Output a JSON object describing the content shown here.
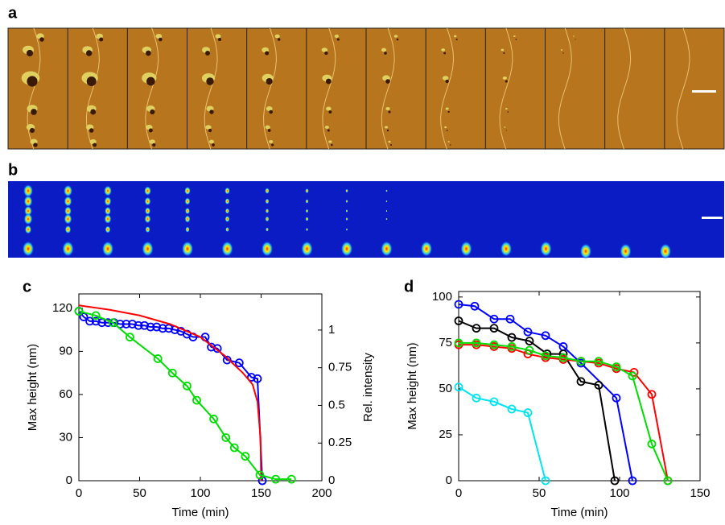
{
  "panel_labels": [
    "a",
    "b",
    "c",
    "d"
  ],
  "chart_data": [
    {
      "type": "line",
      "xlabel": "Time (min)",
      "ylabel": "Max height (nm)",
      "y2label": "Rel. intensity",
      "xlim": [
        0,
        200
      ],
      "xticks": [
        0,
        50,
        100,
        150,
        200
      ],
      "ylim": [
        0,
        130
      ],
      "yticks": [
        0,
        30,
        60,
        90,
        120
      ],
      "y2lim": [
        0,
        1.24
      ],
      "y2ticks": [
        0,
        0.25,
        0.5,
        0.75,
        1
      ],
      "series": [
        {
          "color": "#0000ff",
          "markers": true,
          "x": [
            0,
            4,
            9,
            14,
            19,
            24,
            29,
            34,
            39,
            44,
            49,
            54,
            59,
            64,
            69,
            74,
            79,
            84,
            89,
            94,
            104,
            109,
            114,
            122,
            132,
            142,
            147,
            151
          ],
          "values": [
            118,
            114,
            111,
            111,
            110,
            110,
            110,
            109,
            109,
            109,
            108,
            108,
            107,
            107,
            106,
            106,
            105,
            104,
            102,
            100,
            100,
            93,
            92,
            84,
            82,
            72,
            71,
            0
          ]
        },
        {
          "color": "#ff0000",
          "markers": false,
          "x": [
            0,
            25,
            50,
            75,
            100,
            120,
            135,
            143,
            147,
            149.5,
            150
          ],
          "values": [
            122,
            119,
            115,
            109,
            100,
            87,
            75,
            67,
            55,
            30,
            0
          ]
        },
        {
          "color": "#00dd00",
          "markers": true,
          "axis": "y2",
          "x": [
            0,
            14,
            28,
            42,
            65,
            77,
            89,
            97,
            111,
            121,
            128,
            137,
            149,
            162,
            175
          ],
          "values": [
            1.125,
            1.096,
            1.049,
            0.953,
            0.81,
            0.715,
            0.629,
            0.534,
            0.41,
            0.286,
            0.219,
            0.162,
            0.038,
            0.01,
            0.01
          ]
        }
      ]
    },
    {
      "type": "line",
      "xlabel": "Time (min)",
      "ylabel": "Max height (nm)",
      "xlim": [
        0,
        150
      ],
      "xticks": [
        0,
        50,
        100,
        150
      ],
      "ylim": [
        0,
        103
      ],
      "yticks": [
        0,
        25,
        50,
        75,
        100
      ],
      "series": [
        {
          "color": "#0000ff",
          "markers": true,
          "x": [
            0,
            10,
            22,
            32,
            43,
            54,
            65,
            76,
            98,
            108
          ],
          "values": [
            96,
            95,
            88,
            88,
            81,
            79,
            73,
            64,
            45,
            0
          ]
        },
        {
          "color": "#000000",
          "markers": true,
          "x": [
            0,
            11,
            22,
            33,
            44,
            55,
            65,
            76,
            87,
            97
          ],
          "values": [
            87,
            83,
            83,
            78,
            76,
            69,
            69,
            54,
            52,
            0
          ]
        },
        {
          "color": "#ff0000",
          "markers": true,
          "x": [
            0,
            11,
            22,
            33,
            43,
            54,
            65,
            76,
            87,
            98,
            109,
            120,
            130
          ],
          "values": [
            74,
            74,
            73,
            72,
            69,
            67,
            66,
            65,
            64,
            61,
            59,
            47,
            0
          ]
        },
        {
          "color": "#00dd00",
          "markers": true,
          "x": [
            0,
            11,
            22,
            33,
            44,
            54,
            65,
            76,
            87,
            98,
            108,
            120,
            130
          ],
          "values": [
            75,
            75,
            74,
            73,
            71,
            68,
            67,
            65,
            65,
            62,
            57,
            20,
            0
          ]
        },
        {
          "color": "#00e5ee",
          "markers": true,
          "x": [
            0,
            11,
            22,
            33,
            43,
            54
          ],
          "values": [
            51,
            45,
            43,
            39,
            37,
            0
          ]
        }
      ]
    }
  ]
}
